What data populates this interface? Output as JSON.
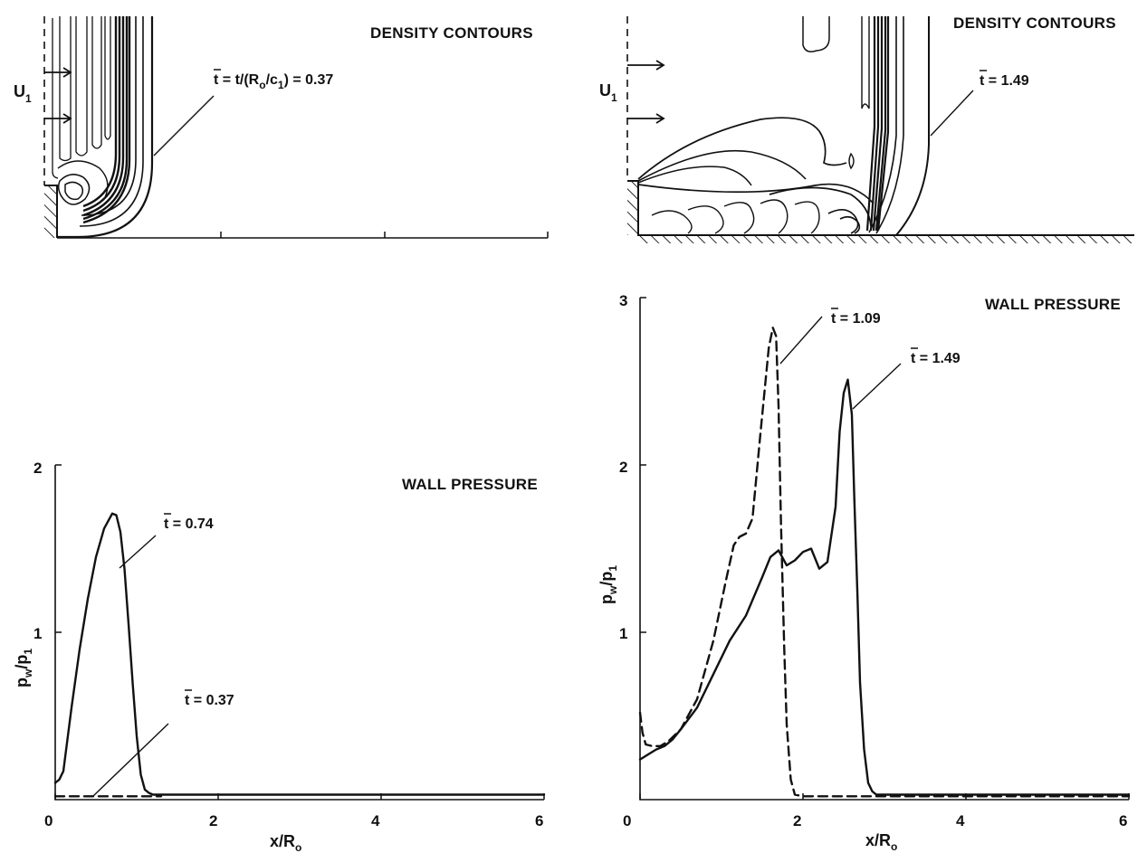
{
  "chart_data": [
    {
      "panel": "top-left",
      "type": "contour",
      "title": "DENSITY CONTOURS",
      "annotations": {
        "inflow_label": "U",
        "inflow_sub": "1",
        "time_prefix": "t = t/(R",
        "time_sub_o": "o",
        "time_mid": "/c",
        "time_sub_1": "1",
        "time_suffix": ") = 0.37"
      }
    },
    {
      "panel": "top-right",
      "type": "contour",
      "title": "DENSITY CONTOURS",
      "annotations": {
        "inflow_label": "U",
        "inflow_sub": "1",
        "time_label": "t = 1.49"
      }
    },
    {
      "panel": "bottom-left",
      "type": "line",
      "title": "WALL PRESSURE",
      "xlabel": "x/R",
      "xlabel_sub": "o",
      "ylabel": "p",
      "ylabel_sub": "w",
      "ylabel_den": "/p",
      "ylabel_den_sub": "1",
      "xlim": [
        0,
        6
      ],
      "ylim": [
        0,
        2
      ],
      "xticks": [
        "0",
        "2",
        "4",
        "6"
      ],
      "yticks": [
        "1",
        "2"
      ],
      "series": [
        {
          "name": "t = 0.74",
          "style": "solid",
          "x": [
            0.0,
            0.05,
            0.1,
            0.2,
            0.3,
            0.4,
            0.5,
            0.6,
            0.7,
            0.75,
            0.8,
            0.85,
            0.9,
            0.95,
            1.0,
            1.05,
            1.1,
            1.15,
            1.2,
            1.3,
            2.0,
            4.0,
            6.0
          ],
          "y": [
            0.1,
            0.12,
            0.17,
            0.55,
            0.9,
            1.2,
            1.45,
            1.62,
            1.71,
            1.7,
            1.6,
            1.38,
            1.05,
            0.7,
            0.38,
            0.15,
            0.06,
            0.04,
            0.03,
            0.03,
            0.03,
            0.03,
            0.03
          ]
        },
        {
          "name": "t = 0.37",
          "style": "dashed",
          "x": [
            0.0,
            0.5,
            1.0,
            1.3
          ],
          "y": [
            0.02,
            0.02,
            0.02,
            0.02
          ]
        }
      ],
      "labels": [
        {
          "text": "t = 0.74",
          "points_to": [
            0.78,
            1.55
          ]
        },
        {
          "text": "t = 0.37",
          "points_to": [
            0.5,
            0.02
          ]
        }
      ]
    },
    {
      "panel": "bottom-right",
      "type": "line",
      "title": "WALL PRESSURE",
      "xlabel": "x/R",
      "xlabel_sub": "o",
      "ylabel": "p",
      "ylabel_sub": "w",
      "ylabel_den": "/p",
      "ylabel_den_sub": "1",
      "xlim": [
        0,
        6
      ],
      "ylim": [
        0,
        3
      ],
      "xticks": [
        "0",
        "2",
        "4",
        "6"
      ],
      "yticks": [
        "1",
        "2",
        "3"
      ],
      "series": [
        {
          "name": "t = 1.09",
          "style": "dashed",
          "x": [
            0.0,
            0.03,
            0.07,
            0.15,
            0.25,
            0.35,
            0.5,
            0.7,
            0.9,
            1.05,
            1.15,
            1.22,
            1.3,
            1.38,
            1.48,
            1.58,
            1.63,
            1.67,
            1.7,
            1.73,
            1.77,
            1.8,
            1.85,
            1.9,
            2.0,
            2.5,
            3.0,
            6.0
          ],
          "y": [
            0.52,
            0.4,
            0.33,
            0.32,
            0.32,
            0.35,
            0.42,
            0.6,
            0.95,
            1.3,
            1.52,
            1.57,
            1.59,
            1.68,
            2.2,
            2.7,
            2.82,
            2.77,
            2.35,
            1.65,
            0.9,
            0.45,
            0.12,
            0.03,
            0.02,
            0.02,
            0.02,
            0.02
          ]
        },
        {
          "name": "t = 1.49",
          "style": "solid",
          "x": [
            0.0,
            0.1,
            0.2,
            0.3,
            0.4,
            0.5,
            0.7,
            0.9,
            1.1,
            1.3,
            1.5,
            1.6,
            1.7,
            1.8,
            1.9,
            2.0,
            2.1,
            2.2,
            2.3,
            2.4,
            2.45,
            2.5,
            2.55,
            2.6,
            2.63,
            2.67,
            2.7,
            2.75,
            2.8,
            2.85,
            2.9,
            3.0,
            6.0
          ],
          "y": [
            0.24,
            0.27,
            0.3,
            0.32,
            0.36,
            0.42,
            0.55,
            0.75,
            0.95,
            1.1,
            1.33,
            1.45,
            1.49,
            1.4,
            1.43,
            1.48,
            1.5,
            1.38,
            1.42,
            1.75,
            2.2,
            2.43,
            2.51,
            2.3,
            1.8,
            1.2,
            0.7,
            0.3,
            0.1,
            0.05,
            0.03,
            0.03,
            0.03
          ]
        }
      ],
      "labels": [
        {
          "text": "t = 1.09",
          "points_to": [
            1.65,
            2.63
          ]
        },
        {
          "text": "t = 1.49",
          "points_to": [
            2.62,
            2.35
          ]
        }
      ]
    }
  ]
}
